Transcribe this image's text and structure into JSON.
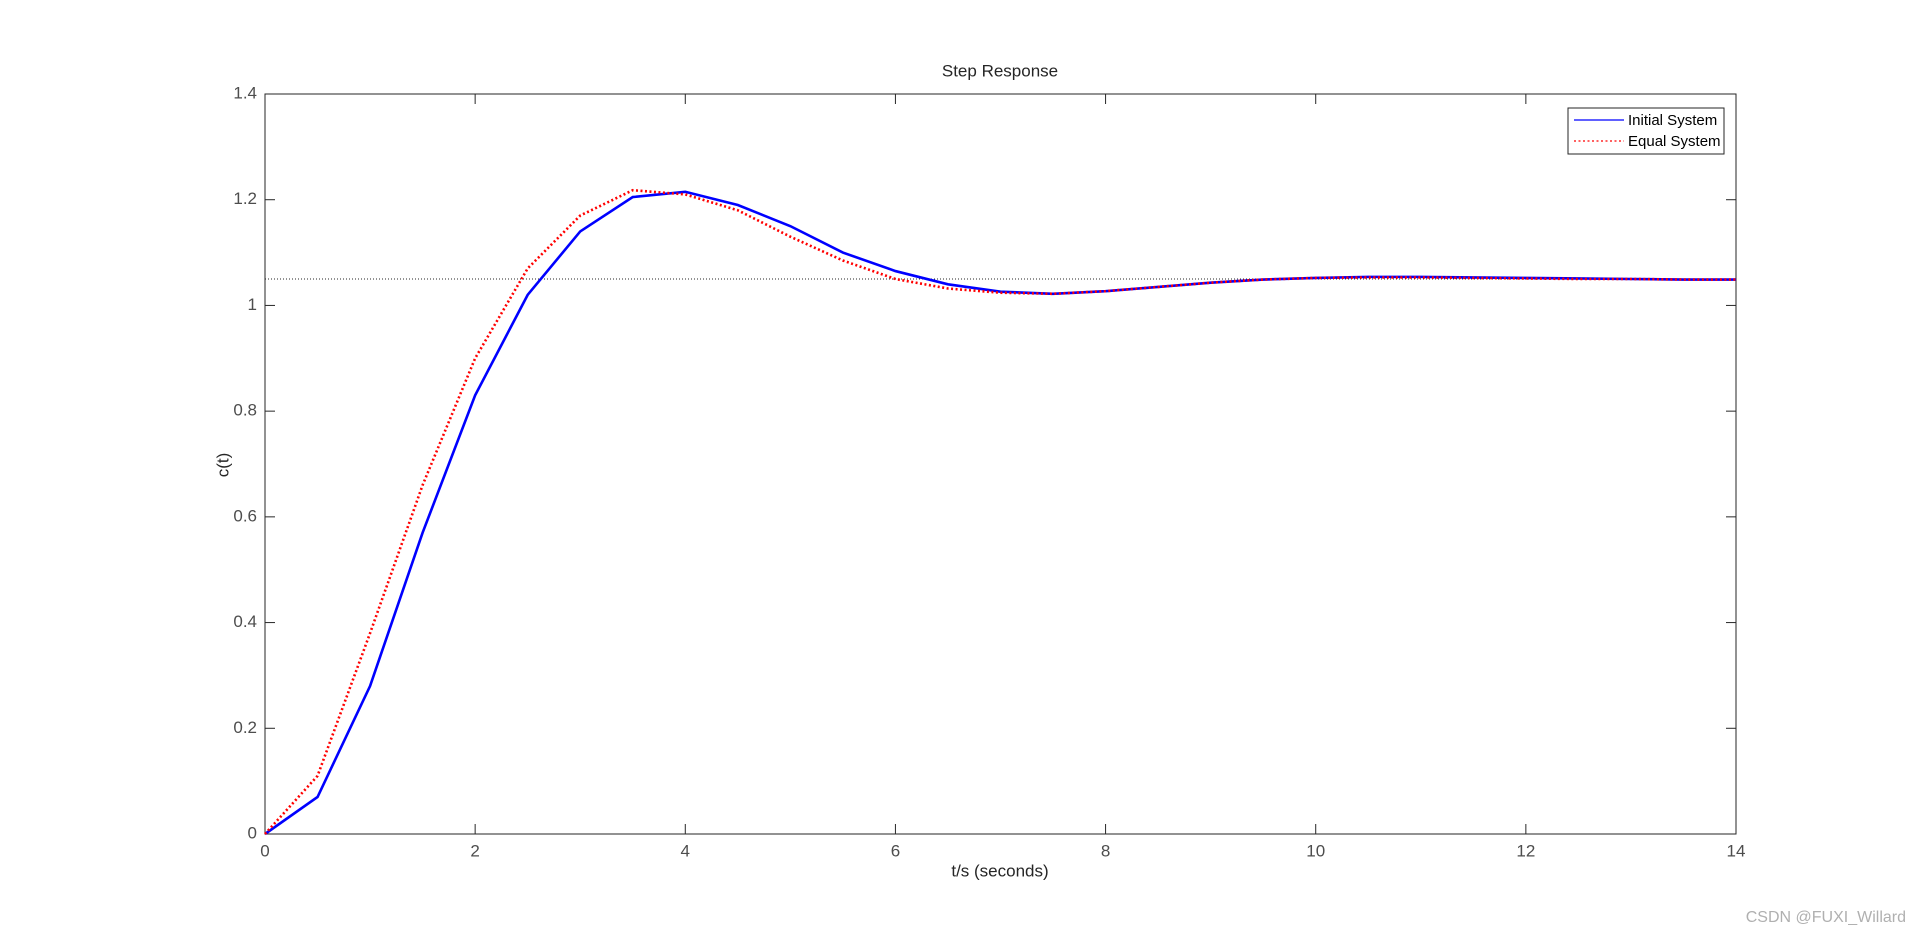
{
  "chart_data": {
    "type": "line",
    "title": "Step Response",
    "x_label": "t/s (seconds)",
    "y_label": "c(t)",
    "x": [
      0,
      0.5,
      1,
      1.5,
      2,
      2.5,
      3,
      3.5,
      4,
      4.5,
      5,
      5.5,
      6,
      6.5,
      7,
      7.5,
      8,
      8.5,
      9,
      9.5,
      10,
      10.5,
      11,
      11.5,
      12,
      12.5,
      13,
      13.5,
      14
    ],
    "series": [
      {
        "name": "Initial System",
        "color": "#0000ff",
        "dash": "solid",
        "values": [
          0,
          0.07,
          0.28,
          0.57,
          0.83,
          1.02,
          1.14,
          1.205,
          1.215,
          1.19,
          1.15,
          1.1,
          1.065,
          1.04,
          1.026,
          1.022,
          1.027,
          1.035,
          1.043,
          1.049,
          1.052,
          1.054,
          1.054,
          1.053,
          1.052,
          1.051,
          1.05,
          1.049,
          1.049
        ]
      },
      {
        "name": "Equal System",
        "color": "#ff0000",
        "dash": "dotted",
        "values": [
          0,
          0.11,
          0.38,
          0.66,
          0.9,
          1.07,
          1.17,
          1.218,
          1.21,
          1.18,
          1.13,
          1.085,
          1.05,
          1.032,
          1.024,
          1.022,
          1.027,
          1.035,
          1.043,
          1.049,
          1.052,
          1.053,
          1.053,
          1.052,
          1.051,
          1.05,
          1.05,
          1.049,
          1.049
        ]
      }
    ],
    "reference_line": 1.05,
    "xlim": [
      0,
      14
    ],
    "xticks": [
      0,
      2,
      4,
      6,
      8,
      10,
      12,
      14
    ],
    "ylim": [
      0,
      1.4
    ],
    "yticks": [
      0,
      0.2,
      0.4,
      0.6,
      0.8,
      1,
      1.2,
      1.4
    ],
    "legend": "upper right",
    "grid": false
  },
  "watermark": "CSDN @FUXI_Willard"
}
